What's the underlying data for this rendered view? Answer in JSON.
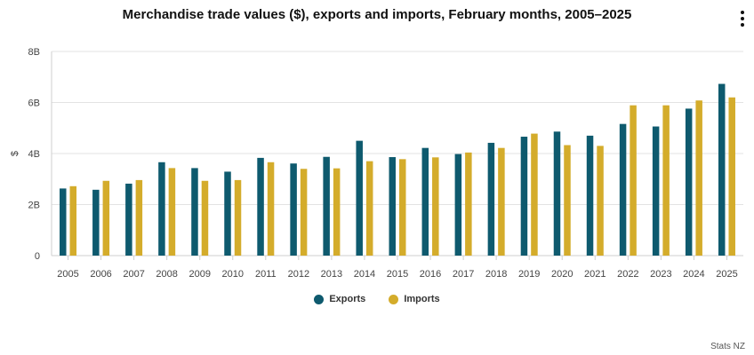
{
  "chart_data": {
    "type": "bar",
    "title": "Merchandise trade values ($), exports and imports, February months, 2005–2025",
    "xlabel": "",
    "ylabel": "$",
    "ylim": [
      0,
      8000000000
    ],
    "yticks": [
      {
        "value": 0,
        "label": "0"
      },
      {
        "value": 2000000000,
        "label": "2B"
      },
      {
        "value": 4000000000,
        "label": "4B"
      },
      {
        "value": 6000000000,
        "label": "6B"
      },
      {
        "value": 8000000000,
        "label": "8B"
      }
    ],
    "categories": [
      "2005",
      "2006",
      "2007",
      "2008",
      "2009",
      "2010",
      "2011",
      "2012",
      "2013",
      "2014",
      "2015",
      "2016",
      "2017",
      "2018",
      "2019",
      "2020",
      "2021",
      "2022",
      "2023",
      "2024",
      "2025"
    ],
    "series": [
      {
        "name": "Exports",
        "color": "#0e5a6e",
        "values": [
          2630000000,
          2580000000,
          2820000000,
          3660000000,
          3430000000,
          3290000000,
          3830000000,
          3610000000,
          3870000000,
          4500000000,
          3860000000,
          4220000000,
          3980000000,
          4420000000,
          4660000000,
          4860000000,
          4700000000,
          5160000000,
          5060000000,
          5760000000,
          6730000000
        ]
      },
      {
        "name": "Imports",
        "color": "#d4ac2b",
        "values": [
          2720000000,
          2930000000,
          2960000000,
          3430000000,
          2930000000,
          2960000000,
          3660000000,
          3400000000,
          3420000000,
          3700000000,
          3780000000,
          3850000000,
          4040000000,
          4220000000,
          4780000000,
          4330000000,
          4300000000,
          5890000000,
          5890000000,
          6080000000,
          6200000000
        ]
      }
    ],
    "grid": true,
    "legend": "bottom-center"
  },
  "menu_icon": "vertical-ellipsis-icon",
  "source": "Stats NZ"
}
